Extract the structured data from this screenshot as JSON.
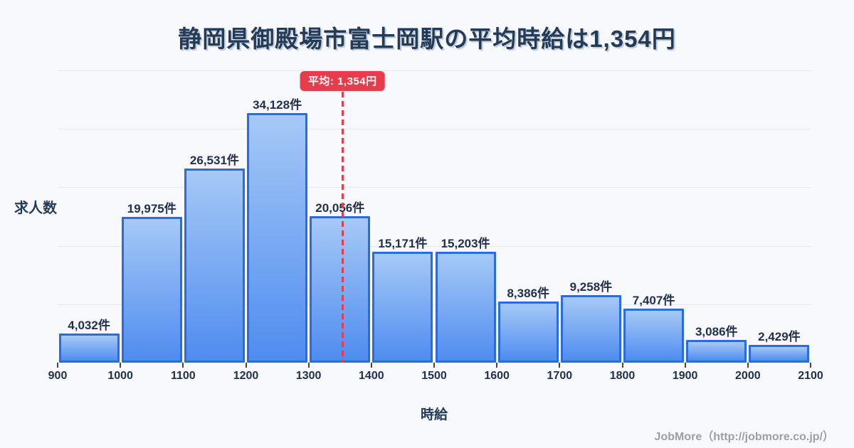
{
  "title": "静岡県御殿場市富士岡駅の平均時給は1,354円",
  "average_badge": "平均: 1,354円",
  "y_axis_label": "求人数",
  "x_axis_label": "時給",
  "footer": "JobMore（http://jobmore.co.jp/）",
  "colors": {
    "background": "#f7f9fc",
    "title": "#243b57",
    "label": "#22304d",
    "bar_fill_top": "#a6c9f6",
    "bar_fill_bottom": "#4f8cf0",
    "bar_border": "#2a6be2",
    "average_red": "#e63c4b",
    "gridline": "#e4e9f1",
    "footer": "#9aa0a6"
  },
  "chart_data": {
    "type": "bar",
    "title": "静岡県御殿場市富士岡駅の平均時給は1,354円",
    "xlabel": "時給",
    "ylabel": "求人数",
    "bin_edges": [
      900,
      1000,
      1100,
      1200,
      1300,
      1400,
      1500,
      1600,
      1700,
      1800,
      1900,
      2000,
      2100
    ],
    "values": [
      4032,
      19975,
      26531,
      34128,
      20056,
      15171,
      15203,
      8386,
      9258,
      7407,
      3086,
      2429
    ],
    "value_labels": [
      "4,032件",
      "19,975件",
      "26,531件",
      "34,128件",
      "20,056件",
      "15,171件",
      "15,203件",
      "8,386件",
      "9,258件",
      "7,407件",
      "3,086件",
      "2,429件"
    ],
    "average": 1354,
    "average_label": "平均: 1,354円",
    "xlim": [
      900,
      2100
    ],
    "ylim": [
      0,
      40000
    ],
    "grid": true,
    "legend": "none"
  }
}
